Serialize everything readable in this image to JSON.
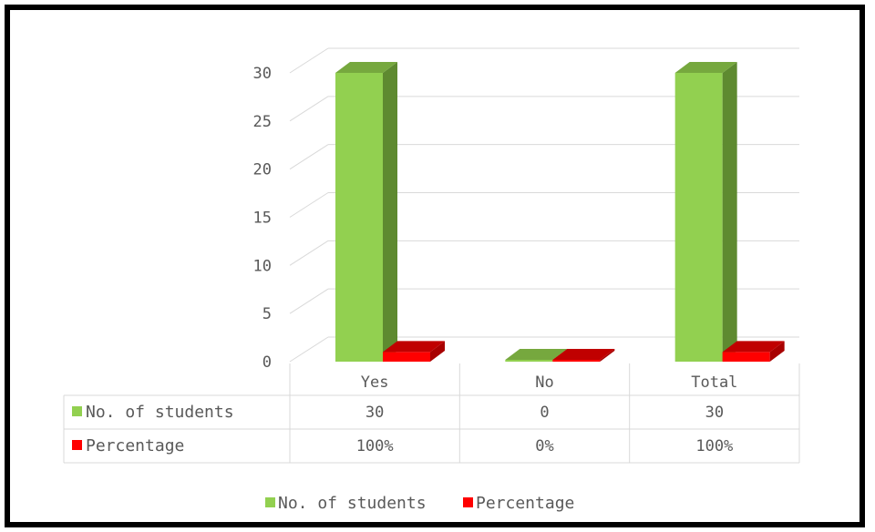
{
  "chart_data": {
    "type": "bar",
    "style": "3d-column-with-data-table",
    "categories": [
      "Yes",
      "No",
      "Total"
    ],
    "series": [
      {
        "name": "No. of students",
        "values": [
          30,
          0,
          30
        ],
        "table_values": [
          "30",
          "0",
          "30"
        ],
        "color": "#92d050",
        "side_color": "#5e8a30",
        "top_color": "#76a83e"
      },
      {
        "name": "Percentage",
        "values": [
          1,
          0,
          1
        ],
        "table_values": [
          "100%",
          "0%",
          "100%"
        ],
        "color": "#ff0000",
        "side_color": "#a80000",
        "top_color": "#c00000"
      }
    ],
    "y_ticks": [
      "0",
      "5",
      "10",
      "15",
      "20",
      "25",
      "30"
    ],
    "ylim": [
      0,
      30
    ],
    "grid": true,
    "legend_position": "bottom"
  }
}
